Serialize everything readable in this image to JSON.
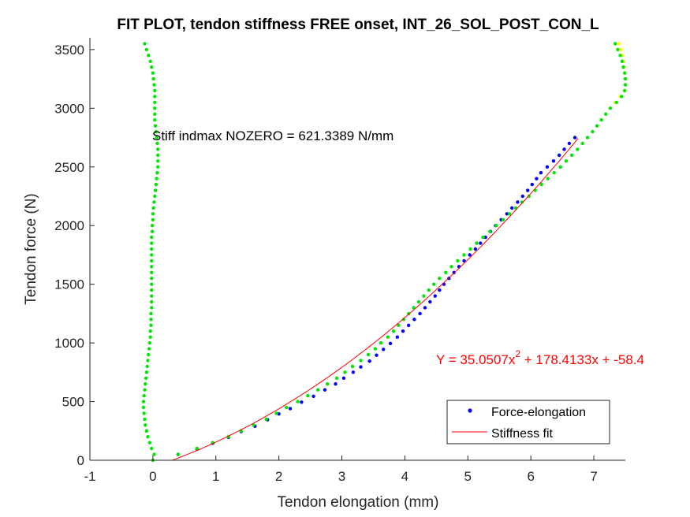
{
  "chart_data": {
    "type": "scatter",
    "title": "FIT PLOT, tendon stiffness FREE onset, INT_26_SOL_POST_CON_L",
    "xlabel": "Tendon elongation (mm)",
    "ylabel": "Tendon force (N)",
    "xlim": [
      -1,
      7.5
    ],
    "ylim": [
      0,
      3600
    ],
    "xticks": [
      -1,
      0,
      1,
      2,
      3,
      4,
      5,
      6,
      7
    ],
    "yticks": [
      0,
      500,
      1000,
      1500,
      2000,
      2500,
      3000,
      3500
    ],
    "grid": false,
    "annotations": {
      "stiffness_text": "Stiff indmax NOZERO = 621.3389 N/mm",
      "equation_prefix": "Y = 35.0507x",
      "equation_exponent": "2",
      "equation_suffix": " + 178.4133x + -58.4"
    },
    "legend": {
      "position": "bottom-right",
      "entries": [
        {
          "label": "Force-elongation",
          "color": "#0000ff",
          "marker": "dot"
        },
        {
          "label": "Stiffness fit",
          "color": "#ff0000",
          "marker": "line"
        }
      ]
    },
    "series": [
      {
        "name": "Force-elongation",
        "color": "#0000ff",
        "marker": "dot",
        "points": [
          [
            0.4,
            50
          ],
          [
            0.7,
            95
          ],
          [
            0.95,
            145
          ],
          [
            1.2,
            195
          ],
          [
            1.4,
            245
          ],
          [
            1.62,
            290
          ],
          [
            1.82,
            345
          ],
          [
            2.0,
            395
          ],
          [
            2.18,
            440
          ],
          [
            2.36,
            495
          ],
          [
            2.55,
            545
          ],
          [
            2.73,
            600
          ],
          [
            2.9,
            650
          ],
          [
            3.03,
            700
          ],
          [
            3.18,
            750
          ],
          [
            3.3,
            795
          ],
          [
            3.44,
            845
          ],
          [
            3.55,
            895
          ],
          [
            3.66,
            945
          ],
          [
            3.77,
            995
          ],
          [
            3.88,
            1050
          ],
          [
            3.97,
            1100
          ],
          [
            4.06,
            1150
          ],
          [
            4.15,
            1200
          ],
          [
            4.24,
            1250
          ],
          [
            4.32,
            1300
          ],
          [
            4.4,
            1350
          ],
          [
            4.48,
            1400
          ],
          [
            4.55,
            1450
          ],
          [
            4.62,
            1500
          ],
          [
            4.7,
            1550
          ],
          [
            4.78,
            1600
          ],
          [
            4.86,
            1650
          ],
          [
            4.94,
            1700
          ],
          [
            5.03,
            1750
          ],
          [
            5.12,
            1800
          ],
          [
            5.2,
            1850
          ],
          [
            5.28,
            1900
          ],
          [
            5.36,
            1950
          ],
          [
            5.44,
            2000
          ],
          [
            5.53,
            2050
          ],
          [
            5.62,
            2100
          ],
          [
            5.7,
            2150
          ],
          [
            5.79,
            2200
          ],
          [
            5.87,
            2250
          ],
          [
            5.95,
            2300
          ],
          [
            6.02,
            2350
          ],
          [
            6.09,
            2400
          ],
          [
            6.16,
            2450
          ],
          [
            6.26,
            2500
          ],
          [
            6.36,
            2550
          ],
          [
            6.45,
            2600
          ],
          [
            6.53,
            2650
          ],
          [
            6.61,
            2700
          ],
          [
            6.7,
            2750
          ]
        ]
      },
      {
        "name": "",
        "color": "#00e600",
        "marker": "dot",
        "points": [
          [
            0.0,
            0
          ],
          [
            0.02,
            50
          ],
          [
            -0.02,
            100
          ],
          [
            -0.05,
            150
          ],
          [
            -0.08,
            200
          ],
          [
            -0.1,
            250
          ],
          [
            -0.12,
            300
          ],
          [
            -0.13,
            350
          ],
          [
            -0.14,
            400
          ],
          [
            -0.15,
            450
          ],
          [
            -0.15,
            500
          ],
          [
            -0.14,
            550
          ],
          [
            -0.13,
            600
          ],
          [
            -0.12,
            650
          ],
          [
            -0.11,
            700
          ],
          [
            -0.1,
            750
          ],
          [
            -0.09,
            800
          ],
          [
            -0.08,
            850
          ],
          [
            -0.07,
            900
          ],
          [
            -0.06,
            950
          ],
          [
            -0.05,
            1000
          ],
          [
            -0.04,
            1050
          ],
          [
            -0.04,
            1100
          ],
          [
            -0.03,
            1150
          ],
          [
            -0.03,
            1200
          ],
          [
            -0.03,
            1250
          ],
          [
            -0.02,
            1300
          ],
          [
            -0.02,
            1350
          ],
          [
            -0.02,
            1400
          ],
          [
            -0.02,
            1450
          ],
          [
            -0.02,
            1500
          ],
          [
            -0.02,
            1550
          ],
          [
            -0.02,
            1600
          ],
          [
            -0.02,
            1650
          ],
          [
            -0.02,
            1700
          ],
          [
            -0.02,
            1750
          ],
          [
            -0.02,
            1800
          ],
          [
            -0.02,
            1850
          ],
          [
            -0.02,
            1900
          ],
          [
            -0.01,
            1950
          ],
          [
            -0.01,
            2000
          ],
          [
            0.0,
            2050
          ],
          [
            0.0,
            2100
          ],
          [
            0.01,
            2150
          ],
          [
            0.02,
            2200
          ],
          [
            0.03,
            2250
          ],
          [
            0.04,
            2300
          ],
          [
            0.05,
            2350
          ],
          [
            0.06,
            2400
          ],
          [
            0.07,
            2450
          ],
          [
            0.08,
            2500
          ],
          [
            0.08,
            2550
          ],
          [
            0.08,
            2600
          ],
          [
            0.08,
            2650
          ],
          [
            0.07,
            2700
          ],
          [
            0.06,
            2750
          ],
          [
            0.05,
            2800
          ],
          [
            0.04,
            2850
          ],
          [
            0.03,
            2900
          ],
          [
            0.03,
            2950
          ],
          [
            0.03,
            3000
          ],
          [
            0.03,
            3050
          ],
          [
            0.03,
            3100
          ],
          [
            0.03,
            3150
          ],
          [
            0.02,
            3200
          ],
          [
            0.01,
            3250
          ],
          [
            0.0,
            3300
          ],
          [
            -0.02,
            3350
          ],
          [
            -0.04,
            3400
          ],
          [
            -0.07,
            3450
          ],
          [
            -0.1,
            3500
          ],
          [
            -0.13,
            3550
          ],
          [
            0.4,
            50
          ],
          [
            0.7,
            100
          ],
          [
            0.95,
            150
          ],
          [
            1.2,
            200
          ],
          [
            1.4,
            250
          ],
          [
            1.6,
            300
          ],
          [
            1.8,
            350
          ],
          [
            1.96,
            400
          ],
          [
            2.12,
            450
          ],
          [
            2.3,
            500
          ],
          [
            2.46,
            550
          ],
          [
            2.62,
            600
          ],
          [
            2.77,
            650
          ],
          [
            2.92,
            700
          ],
          [
            3.05,
            750
          ],
          [
            3.17,
            800
          ],
          [
            3.3,
            850
          ],
          [
            3.42,
            900
          ],
          [
            3.53,
            950
          ],
          [
            3.62,
            1000
          ],
          [
            3.73,
            1050
          ],
          [
            3.82,
            1100
          ],
          [
            3.9,
            1150
          ],
          [
            3.98,
            1200
          ],
          [
            4.06,
            1250
          ],
          [
            4.14,
            1300
          ],
          [
            4.22,
            1350
          ],
          [
            4.3,
            1400
          ],
          [
            4.38,
            1450
          ],
          [
            4.46,
            1500
          ],
          [
            4.55,
            1550
          ],
          [
            4.65,
            1600
          ],
          [
            4.74,
            1650
          ],
          [
            4.84,
            1700
          ],
          [
            4.94,
            1750
          ],
          [
            5.04,
            1800
          ],
          [
            5.14,
            1850
          ],
          [
            5.24,
            1900
          ],
          [
            5.35,
            1950
          ],
          [
            5.45,
            2000
          ],
          [
            5.56,
            2050
          ],
          [
            5.66,
            2100
          ],
          [
            5.76,
            2150
          ],
          [
            5.86,
            2200
          ],
          [
            5.97,
            2250
          ],
          [
            6.07,
            2300
          ],
          [
            6.17,
            2350
          ],
          [
            6.27,
            2400
          ],
          [
            6.37,
            2450
          ],
          [
            6.47,
            2500
          ],
          [
            6.56,
            2550
          ],
          [
            6.65,
            2600
          ],
          [
            6.74,
            2650
          ],
          [
            6.82,
            2700
          ],
          [
            6.9,
            2750
          ],
          [
            6.98,
            2800
          ],
          [
            7.05,
            2850
          ],
          [
            7.12,
            2900
          ],
          [
            7.19,
            2950
          ],
          [
            7.26,
            3000
          ]
        ]
      },
      {
        "name": "",
        "color": "#ffff00",
        "marker": "dot",
        "points": [
          [
            7.34,
            3050
          ],
          [
            7.42,
            3100
          ],
          [
            7.48,
            3150
          ],
          [
            7.5,
            3200
          ],
          [
            7.5,
            3250
          ],
          [
            7.49,
            3300
          ],
          [
            7.48,
            3350
          ],
          [
            7.47,
            3400
          ],
          [
            7.45,
            3450
          ],
          [
            7.43,
            3500
          ],
          [
            7.4,
            3550
          ]
        ]
      },
      {
        "name": "",
        "color": "#00e600",
        "marker": "dot",
        "points": [
          [
            7.36,
            3050
          ],
          [
            7.44,
            3100
          ],
          [
            7.49,
            3150
          ],
          [
            7.5,
            3200
          ],
          [
            7.5,
            3250
          ],
          [
            7.49,
            3300
          ],
          [
            7.47,
            3350
          ],
          [
            7.45,
            3400
          ],
          [
            7.42,
            3450
          ],
          [
            7.38,
            3500
          ],
          [
            7.34,
            3550
          ]
        ]
      },
      {
        "name": "Stiffness fit",
        "color": "#ff0000",
        "marker": "line",
        "fit": {
          "a": 35.0507,
          "b": 178.4133,
          "c": -58.4,
          "x_from": 0.31,
          "x_to": 6.75
        }
      }
    ]
  }
}
